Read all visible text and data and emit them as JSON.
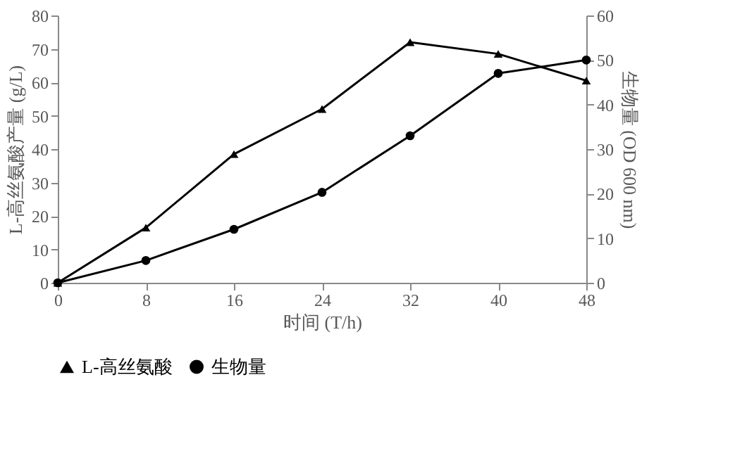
{
  "chart_data": {
    "type": "line",
    "xlabel": "时间 (T/h)",
    "ylabel": "L-高丝氨酸产量 (g/L)",
    "y2label": "生物量 (OD 600 nm)",
    "x": [
      0,
      8,
      16,
      24,
      32,
      40,
      48
    ],
    "xlim": [
      0,
      48
    ],
    "xticks": [
      0,
      8,
      16,
      24,
      32,
      40,
      48
    ],
    "ylim": [
      0,
      80
    ],
    "yticks": [
      0,
      10,
      20,
      30,
      40,
      50,
      60,
      70,
      80
    ],
    "y2lim": [
      0,
      60
    ],
    "y2ticks": [
      0,
      10,
      20,
      30,
      40,
      50,
      60
    ],
    "grid": false,
    "legend": "bottom",
    "line_style": "solid",
    "series": [
      {
        "name": "L-高丝氨酸",
        "color": "#000000",
        "marker": "triangle",
        "values": [
          0,
          16.5,
          38.5,
          52,
          72,
          68.5,
          60.5
        ]
      },
      {
        "name": "生物量",
        "color": "#000000",
        "marker": "circle",
        "axis": "y2",
        "values": [
          0,
          5,
          12,
          20.3,
          33,
          47,
          50
        ]
      }
    ]
  }
}
